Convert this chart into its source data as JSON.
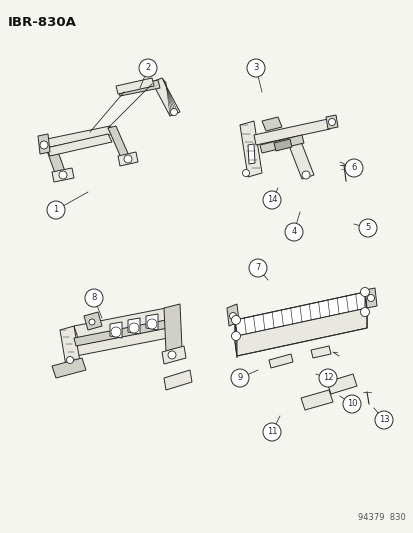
{
  "title_code": "IBR-830A",
  "footer_code": "94379  830",
  "bg_color": "#f5f5f0",
  "line_color": "#2a2a2a",
  "fill_light": "#e8e8e0",
  "fill_mid": "#d0d0c8",
  "fill_dark": "#b0b0a8",
  "label_color": "#111111",
  "title_fontsize": 9.5,
  "footer_fontsize": 6,
  "label_fontsize": 6.5,
  "fig_width": 4.14,
  "fig_height": 5.33,
  "dpi": 100
}
